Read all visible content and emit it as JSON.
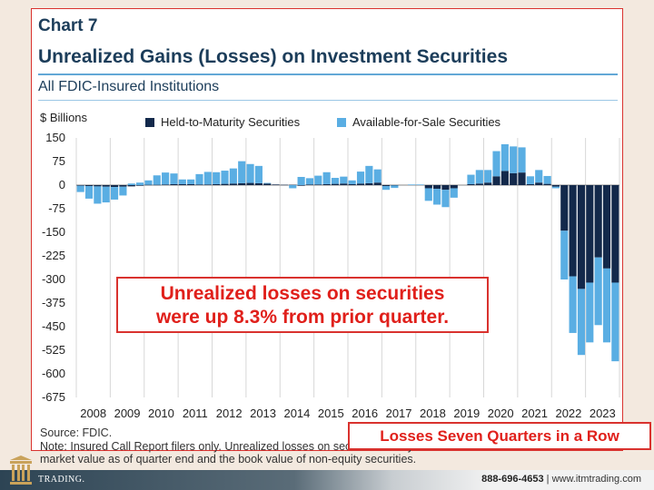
{
  "chart_label": "Chart 7",
  "title": "Unrealized Gains (Losses) on Investment Securities",
  "subtitle": "All FDIC-Insured Institutions",
  "unit_label": "$ Billions",
  "legend": [
    {
      "label": "Held-to-Maturity Securities",
      "color": "#13294b"
    },
    {
      "label": "Available-for-Sale Securities",
      "color": "#5aaee3"
    }
  ],
  "callout": {
    "line1": "Unrealized losses on securities",
    "line2": "were up 8.3% from prior quarter."
  },
  "banner": "Losses Seven Quarters in a Row",
  "source": "Source: FDIC.",
  "note": "Note: Insured Call Report filers only. Unrealized losses on securities solely reflect the difference between the market value as of quarter end and the book value of non-equity securities.",
  "footer": {
    "phone": "888-696-4653",
    "separator": "|",
    "website": "www.itmtrading.com",
    "logo_text": "TRADING."
  },
  "chart_data": {
    "type": "bar",
    "stacked": true,
    "ylim": [
      -675,
      150
    ],
    "yticks": [
      150,
      75,
      0,
      -75,
      -150,
      -225,
      -300,
      -375,
      -450,
      -525,
      -600,
      -675
    ],
    "xticks": [
      "2008",
      "2009",
      "2010",
      "2011",
      "2012",
      "2013",
      "2014",
      "2015",
      "2016",
      "2017",
      "2018",
      "2019",
      "2020",
      "2021",
      "2022",
      "2023"
    ],
    "grid": "vertical",
    "series": [
      {
        "name": "Held-to-Maturity Securities",
        "values": [
          -2,
          -3,
          -4,
          -5,
          -6,
          -5,
          -4,
          -2,
          1,
          1,
          2,
          3,
          3,
          3,
          2,
          2,
          3,
          4,
          5,
          6,
          7,
          6,
          5,
          2,
          1,
          1,
          -2,
          2,
          2,
          3,
          4,
          5,
          3,
          5,
          6,
          8,
          -3,
          -1,
          0,
          0,
          0,
          -10,
          -12,
          -15,
          -10,
          0,
          3,
          5,
          8,
          28,
          45,
          38,
          40,
          3,
          8,
          4,
          -5,
          -145,
          -290,
          -330,
          -310,
          -230,
          -265,
          -310
        ]
      },
      {
        "name": "Available-for-Sale Securities",
        "values": [
          -20,
          -40,
          -55,
          -50,
          -40,
          -28,
          5,
          8,
          14,
          30,
          38,
          34,
          15,
          15,
          33,
          40,
          38,
          42,
          48,
          70,
          60,
          55,
          2,
          0,
          0,
          -10,
          26,
          20,
          28,
          38,
          19,
          22,
          12,
          38,
          55,
          42,
          -12,
          -8,
          0,
          2,
          2,
          -40,
          -50,
          -55,
          -30,
          0,
          30,
          43,
          40,
          80,
          85,
          85,
          80,
          25,
          40,
          25,
          -5,
          -155,
          -180,
          -210,
          -190,
          -215,
          -235,
          -250
        ]
      }
    ]
  }
}
